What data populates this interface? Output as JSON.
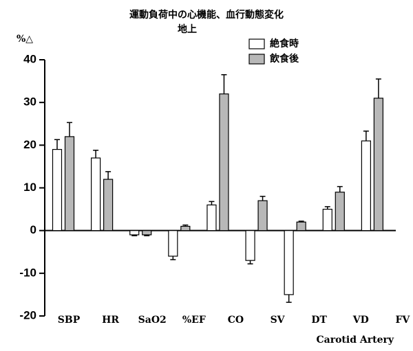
{
  "chart_data": {
    "type": "bar",
    "title": "運動負荷中の心機能、血行動態変化",
    "subtitle": "地上",
    "y_label": "%△",
    "x_label": "Carotid Artery",
    "categories": [
      "SBP",
      "HR",
      "SaO2",
      "%EF",
      "CO",
      "SV",
      "DT",
      "VD",
      "FV"
    ],
    "series": [
      {
        "name": "絶食時",
        "color": "#ffffff",
        "values": [
          19,
          17,
          -1,
          -6,
          6,
          -7,
          -15,
          5,
          21
        ],
        "errors": [
          2.3,
          1.8,
          0.2,
          0.8,
          0.8,
          0.8,
          1.8,
          0.6,
          2.3
        ]
      },
      {
        "name": "飲食後",
        "color": "#b8b8b8",
        "values": [
          22,
          12,
          -1,
          1,
          32,
          7,
          2,
          9,
          31
        ],
        "errors": [
          3.3,
          1.8,
          0.2,
          0.3,
          4.5,
          1,
          0.2,
          1.3,
          4.5
        ]
      }
    ],
    "ylim": [
      -20,
      40
    ],
    "yticks": [
      -20,
      -10,
      0,
      10,
      20,
      30,
      40
    ],
    "legend": "top-right"
  }
}
